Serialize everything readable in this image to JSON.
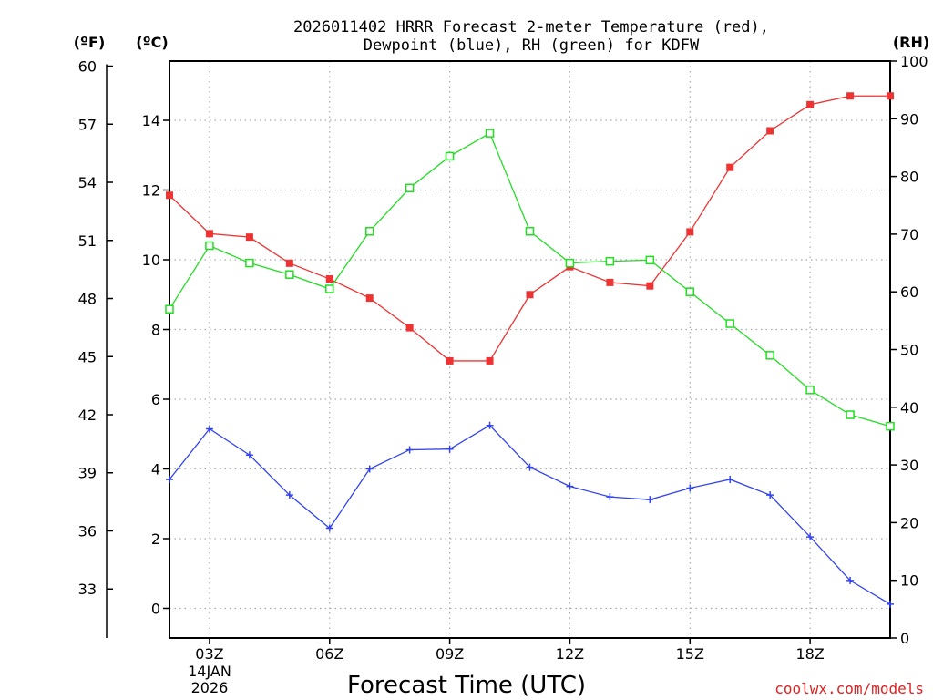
{
  "chart_data": {
    "type": "line",
    "title": [
      "2026011402 HRRR Forecast 2-meter Temperature (red),",
      "Dewpoint (blue), RH (green) for KDFW"
    ],
    "xlabel": "Forecast Time (UTC)",
    "credit": "coolwx.com/models",
    "units": {
      "fahrenheit": "(ºF)",
      "celsius": "(ºC)",
      "rh": "(RH)"
    },
    "x": [
      2,
      3,
      4,
      5,
      6,
      7,
      8,
      9,
      10,
      11,
      12,
      13,
      14,
      15,
      16,
      17,
      18,
      19,
      20
    ],
    "x_range": [
      2,
      20
    ],
    "x_ticks": [
      {
        "x": 3,
        "label": "03Z",
        "sub": [
          "14JAN",
          "2026"
        ]
      },
      {
        "x": 6,
        "label": "06Z",
        "sub": []
      },
      {
        "x": 9,
        "label": "09Z",
        "sub": []
      },
      {
        "x": 12,
        "label": "12Z",
        "sub": []
      },
      {
        "x": 15,
        "label": "15Z",
        "sub": []
      },
      {
        "x": 18,
        "label": "18Z",
        "sub": []
      }
    ],
    "y_celsius": {
      "range": [
        -0.85,
        15.7
      ],
      "ticks": [
        0,
        2,
        4,
        6,
        8,
        10,
        12,
        14
      ]
    },
    "y_fahrenheit": {
      "ticks": [
        33,
        36,
        39,
        42,
        45,
        48,
        51,
        54,
        57,
        60
      ]
    },
    "y_rh": {
      "range": [
        0,
        100
      ],
      "ticks": [
        0,
        10,
        20,
        30,
        40,
        50,
        60,
        70,
        80,
        90,
        100
      ]
    },
    "series": [
      {
        "name": "Temperature",
        "unit": "C",
        "color": "#ee3333",
        "marker": "filled-square",
        "values": [
          11.85,
          10.75,
          10.65,
          9.9,
          9.45,
          8.9,
          8.05,
          7.1,
          7.1,
          9.0,
          9.8,
          9.35,
          9.25,
          10.8,
          12.65,
          13.7,
          14.45,
          14.7,
          14.7
        ]
      },
      {
        "name": "Dewpoint",
        "unit": "C",
        "color": "#3344ee",
        "marker": "plus",
        "values": [
          3.7,
          5.15,
          4.4,
          3.25,
          2.3,
          4.0,
          4.55,
          4.57,
          5.25,
          4.05,
          3.5,
          3.2,
          3.12,
          3.45,
          3.7,
          3.25,
          2.05,
          0.8,
          0.12
        ]
      },
      {
        "name": "RH",
        "unit": "%",
        "color": "#22dd22",
        "marker": "open-square",
        "values": [
          57,
          68,
          65,
          63,
          60.5,
          70.5,
          78,
          83.5,
          87.5,
          70.5,
          65,
          65.3,
          65.5,
          60,
          54.5,
          49,
          43,
          38.7,
          36.7
        ]
      }
    ]
  }
}
